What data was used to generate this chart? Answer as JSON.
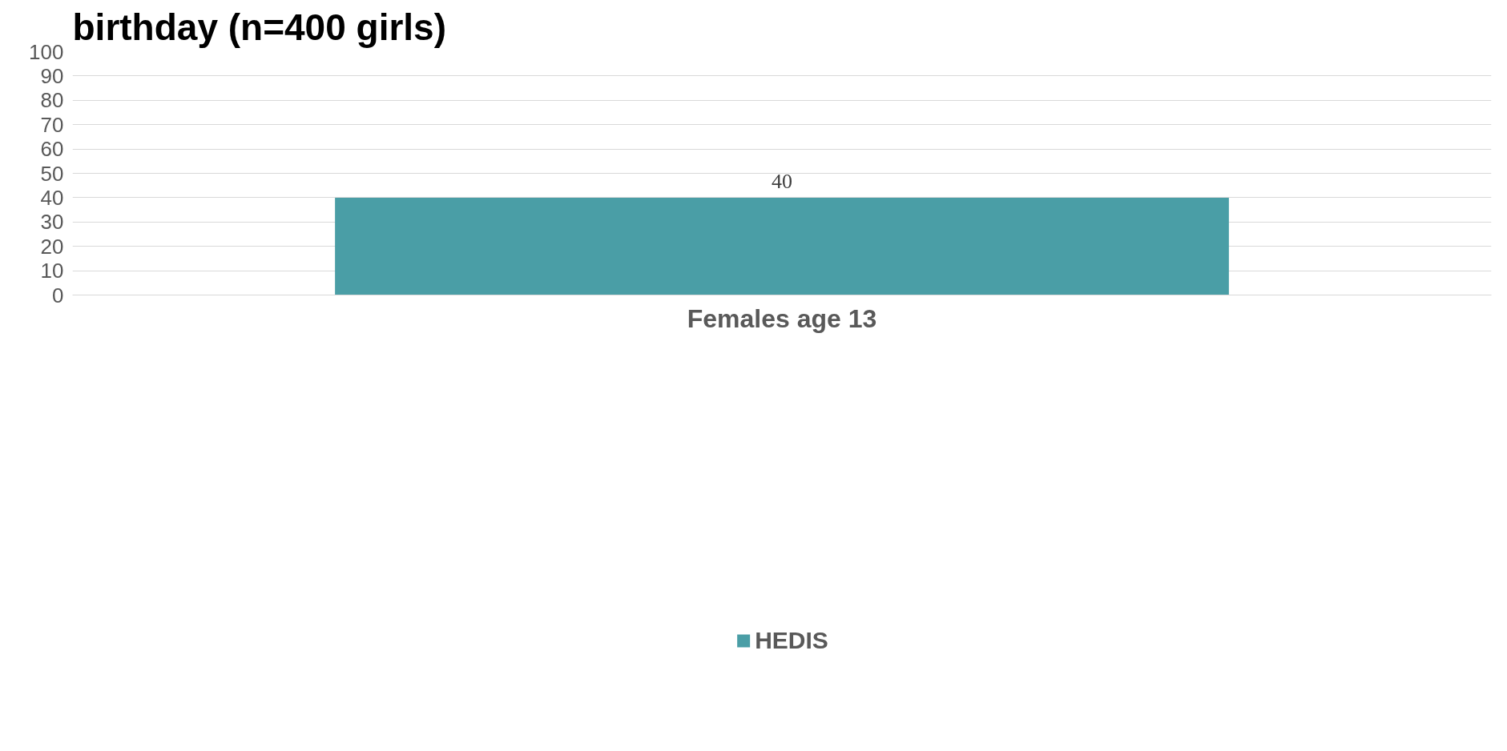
{
  "chart_data": {
    "type": "bar",
    "title": "birthday (n=400 girls)",
    "categories": [
      "Females age 13"
    ],
    "series": [
      {
        "name": "HEDIS",
        "color": "#4a9ea6",
        "values": [
          40
        ]
      }
    ],
    "ylim": [
      0,
      100
    ],
    "yticks": [
      0,
      10,
      20,
      30,
      40,
      50,
      60,
      70,
      80,
      90,
      100
    ],
    "grid": "y",
    "legend": "bottom",
    "data_labels": true
  }
}
